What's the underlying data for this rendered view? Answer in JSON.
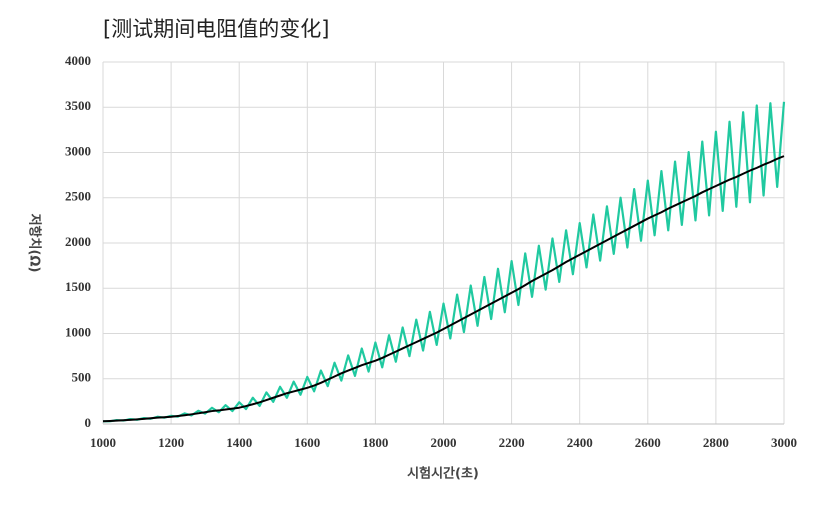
{
  "chart_data": {
    "type": "line",
    "title": "[测试期间电阻值的变化]",
    "x_label": "시험시간(초)",
    "y_label": "저항치(Ω)",
    "x": [
      1000,
      1020,
      1040,
      1060,
      1080,
      1100,
      1120,
      1140,
      1160,
      1180,
      1200,
      1220,
      1240,
      1260,
      1280,
      1300,
      1320,
      1340,
      1360,
      1380,
      1400,
      1420,
      1440,
      1460,
      1480,
      1500,
      1520,
      1540,
      1560,
      1580,
      1600,
      1620,
      1640,
      1660,
      1680,
      1700,
      1720,
      1740,
      1760,
      1780,
      1800,
      1820,
      1840,
      1860,
      1880,
      1900,
      1920,
      1940,
      1960,
      1980,
      2000,
      2020,
      2040,
      2060,
      2080,
      2100,
      2120,
      2140,
      2160,
      2180,
      2200,
      2220,
      2240,
      2260,
      2280,
      2300,
      2320,
      2340,
      2360,
      2380,
      2400,
      2420,
      2440,
      2460,
      2480,
      2500,
      2520,
      2540,
      2560,
      2580,
      2600,
      2620,
      2640,
      2660,
      2680,
      2700,
      2720,
      2740,
      2760,
      2780,
      2800,
      2820,
      2840,
      2860,
      2880,
      2900,
      2920,
      2940,
      2960,
      2980,
      3000
    ],
    "series": [
      {
        "color": "#20c9a0",
        "width": 2.2,
        "values": [
          30,
          30,
          43,
          38,
          54,
          47,
          65,
          58,
          80,
          70,
          90,
          81,
          117,
          95,
          146,
          115,
          179,
          130,
          208,
          143,
          240,
          165,
          290,
          200,
          349,
          245,
          411,
          289,
          468,
          323,
          520,
          361,
          591,
          418,
          677,
          480,
          758,
          532,
          834,
          579,
          900,
          626,
          981,
          688,
          1067,
          750,
          1153,
          812,
          1239,
          874,
          1330,
          945,
          1430,
          1015,
          1530,
          1085,
          1625,
          1160,
          1715,
          1235,
          1800,
          1315,
          1885,
          1405,
          1970,
          1485,
          2050,
          1570,
          2140,
          1655,
          2220,
          1730,
          2315,
          1805,
          2405,
          1880,
          2500,
          1950,
          2595,
          2025,
          2690,
          2085,
          2795,
          2140,
          2900,
          2200,
          3005,
          2250,
          3120,
          2305,
          3230,
          2355,
          3340,
          2400,
          3445,
          2450,
          3520,
          2525,
          3545,
          2620,
          3560
        ]
      },
      {
        "color": "#000000",
        "width": 2,
        "values": [
          30,
          33,
          37,
          41,
          46,
          51,
          57,
          63,
          70,
          75,
          80,
          88,
          97,
          107,
          118,
          130,
          143,
          150,
          160,
          170,
          180,
          198,
          218,
          240,
          265,
          290,
          315,
          340,
          360,
          380,
          400,
          425,
          455,
          490,
          525,
          560,
          590,
          620,
          650,
          675,
          700,
          730,
          765,
          800,
          835,
          870,
          905,
          940,
          975,
          1010,
          1050,
          1090,
          1130,
          1170,
          1210,
          1250,
          1290,
          1330,
          1370,
          1410,
          1450,
          1490,
          1535,
          1580,
          1620,
          1660,
          1700,
          1745,
          1790,
          1830,
          1870,
          1910,
          1950,
          1990,
          2030,
          2070,
          2110,
          2150,
          2190,
          2230,
          2270,
          2305,
          2340,
          2380,
          2415,
          2450,
          2485,
          2520,
          2560,
          2595,
          2630,
          2665,
          2700,
          2730,
          2765,
          2800,
          2830,
          2865,
          2895,
          2930,
          2960
        ]
      }
    ],
    "xlim": [
      1000,
      3000
    ],
    "xticks": [
      1000,
      1200,
      1400,
      1600,
      1800,
      2000,
      2200,
      2400,
      2600,
      2800,
      3000
    ],
    "ylim": [
      0,
      4000
    ],
    "yticks": [
      0,
      500,
      1000,
      1500,
      2000,
      2500,
      3000,
      3500,
      4000
    ],
    "grid": true
  }
}
